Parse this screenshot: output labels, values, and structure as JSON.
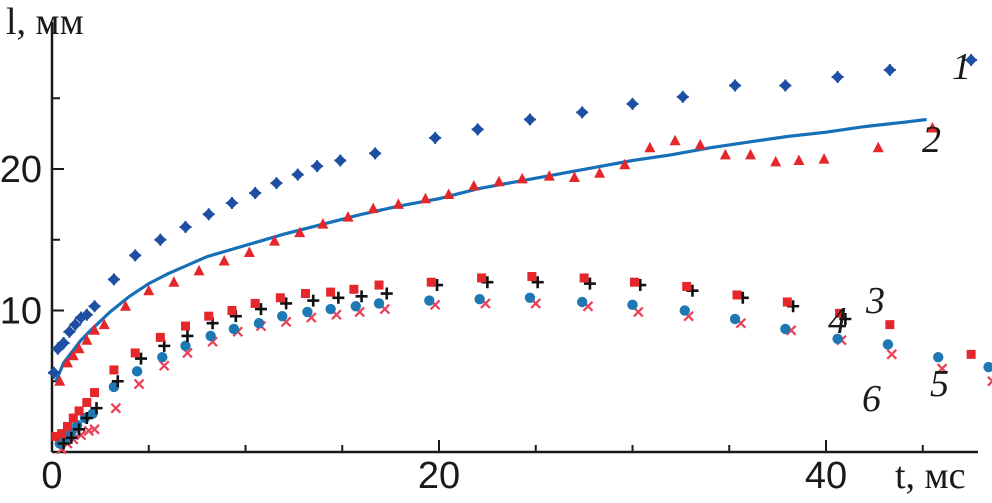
{
  "chart_data": {
    "type": "scatter",
    "title": "",
    "xlabel": "t, мс",
    "ylabel": "l, мм",
    "xlim": [
      0,
      48
    ],
    "ylim": [
      0,
      28
    ],
    "x_ticks": [
      0,
      20,
      40
    ],
    "y_ticks": [
      10,
      20
    ],
    "x_tick_labels": [
      "0",
      "20",
      "40"
    ],
    "y_tick_labels": [
      "10",
      "20"
    ],
    "x_minor_step": 5,
    "y_minor_step": 5,
    "grid": false,
    "colors": {
      "axis": "#1a1a1a",
      "blue": "#1e4fa3",
      "red": "#e5262b",
      "black": "#111111",
      "cyan": "#1e78b4",
      "pink": "#e8455a",
      "curve": "#1670b8"
    },
    "series": [
      {
        "name": "1",
        "color": "#1e4fa3",
        "marker": "diamond-plus",
        "points": [
          [
            0.1,
            5.6
          ],
          [
            0.3,
            7.3
          ],
          [
            0.6,
            7.7
          ],
          [
            0.9,
            8.5
          ],
          [
            1.2,
            9.0
          ],
          [
            1.5,
            9.5
          ],
          [
            1.8,
            9.7
          ],
          [
            2.2,
            10.3
          ],
          [
            3.2,
            12.2
          ],
          [
            4.3,
            13.9
          ],
          [
            5.6,
            15.0
          ],
          [
            6.9,
            15.9
          ],
          [
            8.1,
            16.8
          ],
          [
            9.3,
            17.6
          ],
          [
            10.5,
            18.3
          ],
          [
            11.6,
            19.0
          ],
          [
            12.7,
            19.6
          ],
          [
            13.7,
            20.2
          ],
          [
            14.9,
            20.6
          ],
          [
            16.7,
            21.1
          ],
          [
            19.8,
            22.2
          ],
          [
            22.0,
            22.8
          ],
          [
            24.7,
            23.5
          ],
          [
            27.4,
            24.0
          ],
          [
            30.0,
            24.6
          ],
          [
            32.6,
            25.1
          ],
          [
            35.3,
            25.9
          ],
          [
            37.9,
            25.9
          ],
          [
            40.6,
            26.5
          ],
          [
            43.3,
            27.0
          ],
          [
            47.5,
            27.7
          ]
        ]
      },
      {
        "name": "2",
        "color": "#e5262b",
        "marker": "triangle",
        "points": [
          [
            0.4,
            5.0
          ],
          [
            0.8,
            6.3
          ],
          [
            1.1,
            6.8
          ],
          [
            1.4,
            7.3
          ],
          [
            1.8,
            7.9
          ],
          [
            2.2,
            8.6
          ],
          [
            2.7,
            9.0
          ],
          [
            3.8,
            10.3
          ],
          [
            5.0,
            11.4
          ],
          [
            6.3,
            12.0
          ],
          [
            7.6,
            12.8
          ],
          [
            8.9,
            13.5
          ],
          [
            10.2,
            14.1
          ],
          [
            11.5,
            14.9
          ],
          [
            12.8,
            15.5
          ],
          [
            14.0,
            16.1
          ],
          [
            15.3,
            16.6
          ],
          [
            16.6,
            17.2
          ],
          [
            17.9,
            17.5
          ],
          [
            19.3,
            17.9
          ],
          [
            20.5,
            18.2
          ],
          [
            21.8,
            18.8
          ],
          [
            23.1,
            19.1
          ],
          [
            24.3,
            19.3
          ],
          [
            25.7,
            19.5
          ],
          [
            27.0,
            19.4
          ],
          [
            28.3,
            19.7
          ],
          [
            29.6,
            20.3
          ],
          [
            30.9,
            21.5
          ],
          [
            32.2,
            22.0
          ],
          [
            33.5,
            21.7
          ],
          [
            34.8,
            21.0
          ],
          [
            36.1,
            21.0
          ],
          [
            37.4,
            20.5
          ],
          [
            38.6,
            20.6
          ],
          [
            39.9,
            20.7
          ],
          [
            42.7,
            21.5
          ],
          [
            45.5,
            22.9
          ]
        ]
      },
      {
        "name": "3",
        "color": "#e5262b",
        "marker": "square",
        "points": [
          [
            0.2,
            1.1
          ],
          [
            0.5,
            1.3
          ],
          [
            0.8,
            1.8
          ],
          [
            1.1,
            2.4
          ],
          [
            1.4,
            2.9
          ],
          [
            1.8,
            3.5
          ],
          [
            2.2,
            4.2
          ],
          [
            3.2,
            5.8
          ],
          [
            4.3,
            7.0
          ],
          [
            5.6,
            8.1
          ],
          [
            6.9,
            8.9
          ],
          [
            8.1,
            9.6
          ],
          [
            9.3,
            10.0
          ],
          [
            10.5,
            10.5
          ],
          [
            11.8,
            10.9
          ],
          [
            13.1,
            11.2
          ],
          [
            14.4,
            11.3
          ],
          [
            15.6,
            11.5
          ],
          [
            16.9,
            11.8
          ],
          [
            19.6,
            12.0
          ],
          [
            22.2,
            12.3
          ],
          [
            24.8,
            12.4
          ],
          [
            27.5,
            12.3
          ],
          [
            30.1,
            12.0
          ],
          [
            32.8,
            11.7
          ],
          [
            35.4,
            11.1
          ],
          [
            38.0,
            10.6
          ],
          [
            40.7,
            9.8
          ],
          [
            43.3,
            9.0
          ],
          [
            47.5,
            6.9
          ]
        ]
      },
      {
        "name": "4",
        "color": "#111111",
        "marker": "plus",
        "points": [
          [
            0.6,
            0.6
          ],
          [
            1.0,
            1.0
          ],
          [
            1.4,
            1.6
          ],
          [
            1.8,
            2.4
          ],
          [
            2.3,
            3.1
          ],
          [
            3.4,
            5.0
          ],
          [
            4.6,
            6.6
          ],
          [
            5.8,
            7.5
          ],
          [
            7.0,
            8.2
          ],
          [
            8.3,
            9.1
          ],
          [
            9.5,
            9.6
          ],
          [
            10.8,
            10.1
          ],
          [
            12.1,
            10.5
          ],
          [
            13.5,
            10.7
          ],
          [
            14.8,
            10.9
          ],
          [
            16.0,
            11.0
          ],
          [
            17.3,
            11.2
          ],
          [
            19.9,
            11.8
          ],
          [
            22.5,
            12.0
          ],
          [
            25.1,
            12.0
          ],
          [
            27.8,
            11.9
          ],
          [
            30.4,
            11.8
          ],
          [
            33.1,
            11.4
          ],
          [
            35.7,
            10.9
          ],
          [
            38.3,
            10.3
          ],
          [
            41.0,
            9.4
          ]
        ]
      },
      {
        "name": "5",
        "color": "#e8455a",
        "marker": "x",
        "points": [
          [
            0.5,
            0.2
          ],
          [
            0.8,
            0.6
          ],
          [
            1.1,
            0.9
          ],
          [
            1.5,
            1.2
          ],
          [
            1.9,
            1.5
          ],
          [
            2.2,
            1.6
          ],
          [
            3.3,
            3.1
          ],
          [
            4.5,
            4.8
          ],
          [
            5.8,
            6.1
          ],
          [
            7.0,
            7.0
          ],
          [
            8.3,
            7.8
          ],
          [
            9.6,
            8.5
          ],
          [
            10.8,
            8.9
          ],
          [
            12.1,
            9.2
          ],
          [
            13.4,
            9.5
          ],
          [
            14.7,
            9.7
          ],
          [
            15.9,
            9.9
          ],
          [
            17.2,
            10.1
          ],
          [
            19.8,
            10.4
          ],
          [
            22.4,
            10.5
          ],
          [
            25.0,
            10.5
          ],
          [
            27.7,
            10.3
          ],
          [
            30.3,
            9.9
          ],
          [
            32.9,
            9.6
          ],
          [
            35.6,
            9.1
          ],
          [
            38.2,
            8.6
          ],
          [
            40.8,
            7.9
          ],
          [
            43.4,
            6.9
          ],
          [
            46.0,
            5.9
          ],
          [
            48.6,
            5.0
          ]
        ]
      },
      {
        "name": "6",
        "color": "#1e78b4",
        "marker": "circle",
        "points": [
          [
            0.4,
            0.6
          ],
          [
            0.7,
            1.0
          ],
          [
            1.0,
            1.4
          ],
          [
            1.3,
            1.9
          ],
          [
            1.7,
            2.4
          ],
          [
            2.1,
            2.7
          ],
          [
            3.2,
            4.6
          ],
          [
            4.4,
            5.7
          ],
          [
            5.7,
            6.7
          ],
          [
            6.9,
            7.5
          ],
          [
            8.2,
            8.2
          ],
          [
            9.4,
            8.7
          ],
          [
            10.7,
            9.1
          ],
          [
            11.9,
            9.6
          ],
          [
            13.2,
            9.9
          ],
          [
            14.4,
            10.1
          ],
          [
            15.7,
            10.3
          ],
          [
            16.9,
            10.5
          ],
          [
            19.5,
            10.7
          ],
          [
            22.1,
            10.8
          ],
          [
            24.7,
            10.9
          ],
          [
            27.4,
            10.6
          ],
          [
            30.0,
            10.4
          ],
          [
            32.7,
            10.0
          ],
          [
            35.3,
            9.4
          ],
          [
            37.9,
            8.7
          ],
          [
            40.6,
            8.0
          ],
          [
            43.2,
            7.6
          ],
          [
            45.8,
            6.7
          ],
          [
            48.4,
            6.0
          ]
        ]
      }
    ],
    "curve": {
      "color": "#1670b8",
      "points": [
        [
          0.2,
          5.0
        ],
        [
          0.6,
          6.3
        ],
        [
          1.0,
          7.0
        ],
        [
          1.5,
          7.9
        ],
        [
          2.0,
          8.6
        ],
        [
          3.0,
          9.9
        ],
        [
          4.0,
          11.0
        ],
        [
          5.0,
          11.9
        ],
        [
          6.0,
          12.6
        ],
        [
          7.0,
          13.2
        ],
        [
          8.0,
          13.8
        ],
        [
          10.0,
          14.6
        ],
        [
          12.0,
          15.4
        ],
        [
          14.0,
          16.1
        ],
        [
          16.0,
          16.8
        ],
        [
          18.0,
          17.4
        ],
        [
          20.0,
          17.9
        ],
        [
          22.0,
          18.6
        ],
        [
          24.0,
          19.1
        ],
        [
          26.0,
          19.6
        ],
        [
          28.0,
          20.1
        ],
        [
          30.0,
          20.6
        ],
        [
          32.0,
          21.0
        ],
        [
          34.0,
          21.5
        ],
        [
          36.0,
          21.9
        ],
        [
          38.0,
          22.3
        ],
        [
          40.0,
          22.6
        ],
        [
          42.0,
          23.0
        ],
        [
          44.0,
          23.3
        ],
        [
          45.2,
          23.5
        ]
      ]
    }
  }
}
